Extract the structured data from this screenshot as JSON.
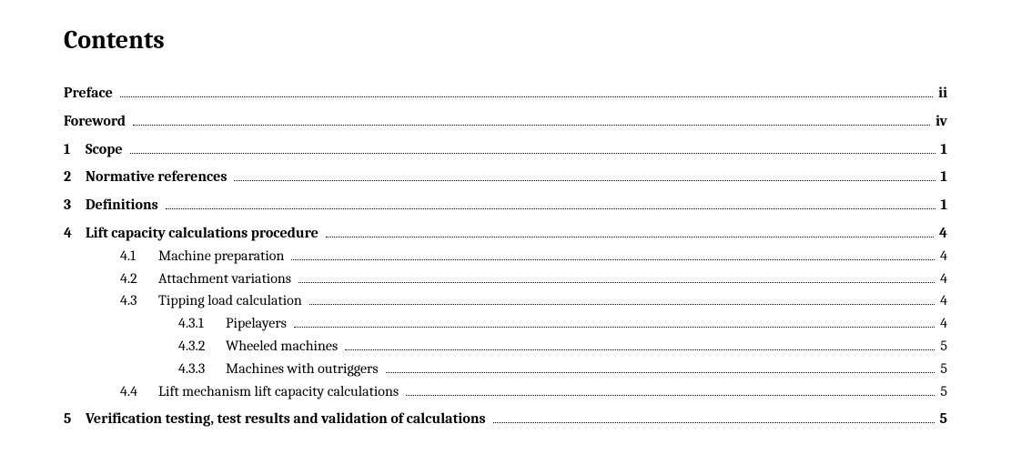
{
  "heading": "Contents",
  "entries": [
    {
      "type": "front",
      "label": "Preface",
      "page": "ii",
      "bold": true
    },
    {
      "type": "front",
      "label": "Foreword",
      "page": "iv",
      "bold": true
    },
    {
      "type": "chapter",
      "num": "1",
      "label": "Scope",
      "page": "1",
      "bold": true
    },
    {
      "type": "chapter",
      "num": "2",
      "label": "Normative references",
      "page": "1",
      "bold": true
    },
    {
      "type": "chapter",
      "num": "3",
      "label": "Definitions",
      "page": "1",
      "bold": true
    },
    {
      "type": "chapter",
      "num": "4",
      "label": "Lift capacity calculations procedure",
      "page": "4",
      "bold": true
    },
    {
      "type": "sub1",
      "num": "4.1",
      "label": "Machine preparation",
      "page": "4"
    },
    {
      "type": "sub1",
      "num": "4.2",
      "label": "Attachment variations",
      "page": "4"
    },
    {
      "type": "sub1",
      "num": "4.3",
      "label": "Tipping load calculation",
      "page": "4"
    },
    {
      "type": "sub2",
      "num": "4.3.1",
      "label": "Pipelayers",
      "page": "4"
    },
    {
      "type": "sub2",
      "num": "4.3.2",
      "label": "Wheeled machines",
      "page": "5"
    },
    {
      "type": "sub2",
      "num": "4.3.3",
      "label": "Machines with outriggers",
      "page": "5"
    },
    {
      "type": "sub1",
      "num": "4.4",
      "label": "Lift mechanism lift capacity calculations",
      "page": "5"
    },
    {
      "type": "chapter",
      "num": "5",
      "label": "Verification testing, test results and validation of calculations",
      "page": "5",
      "bold": true
    }
  ],
  "style": {
    "text_color": "#000000",
    "background_color": "#ffffff",
    "heading_fontsize_pt": 21,
    "body_fontsize_pt": 12,
    "leader_style": "dotted"
  }
}
